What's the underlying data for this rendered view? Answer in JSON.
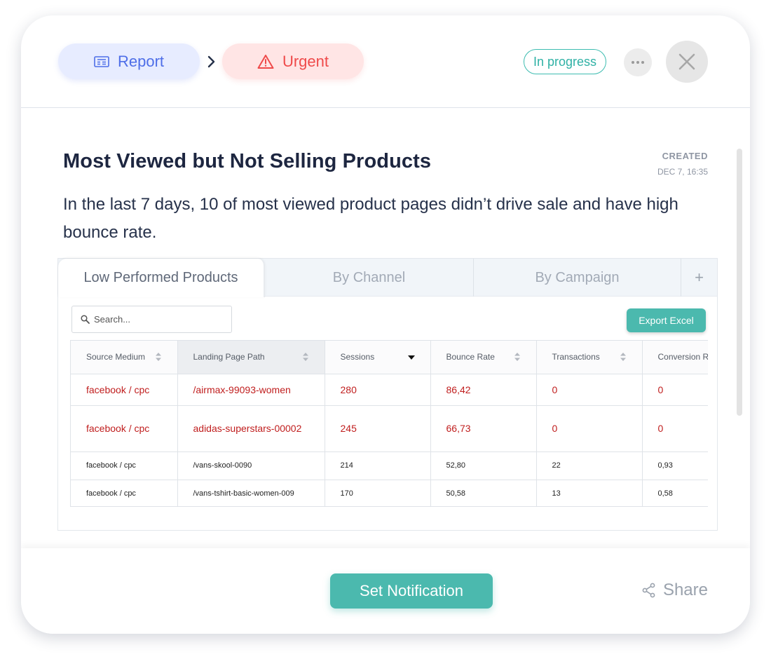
{
  "header": {
    "breadcrumb": {
      "report_label": "Report",
      "urgent_label": "Urgent"
    },
    "status_label": "In progress",
    "icons": {
      "report": "report-icon",
      "urgent": "warning-icon",
      "more": "more-icon",
      "close": "close-icon"
    }
  },
  "insight": {
    "title": "Most Viewed but Not Selling Products",
    "created_label": "CREATED",
    "created_date": "DEC 7, 16:35",
    "description": "In the last 7 days, 10 of most viewed product pages didn’t drive sale and have high bounce rate."
  },
  "report": {
    "tabs": [
      {
        "label": "Low Performed Products"
      },
      {
        "label": "By Channel"
      },
      {
        "label": "By Campaign"
      },
      {
        "label": "+"
      }
    ],
    "search_placeholder": "Search...",
    "export_label": "Export Excel",
    "columns": [
      "Source Medium",
      "Landing Page Path",
      "Sessions",
      "Bounce Rate",
      "Transactions",
      "Conversion R"
    ],
    "rows": [
      [
        "facebook / cpc",
        "/airmax-99093-women",
        "280",
        "86,42",
        "0",
        "0"
      ],
      [
        "facebook / cpc",
        "adidas-superstars-00002",
        "245",
        "66,73",
        "0",
        "0"
      ],
      [
        "facebook / cpc",
        "/vans-skool-0090",
        "214",
        "52,80",
        "22",
        "0,93"
      ],
      [
        "facebook / cpc",
        "/vans-tshirt-basic-women-009",
        "170",
        "50,58",
        "13",
        "0,58"
      ]
    ]
  },
  "footer": {
    "notify_label": "Set Notification",
    "share_label": "Share"
  },
  "colors": {
    "accent": "#4bb9ae",
    "report": "#4e6ee8",
    "urgent": "#ef4a4a",
    "highlight_row": "#c01e1e"
  }
}
